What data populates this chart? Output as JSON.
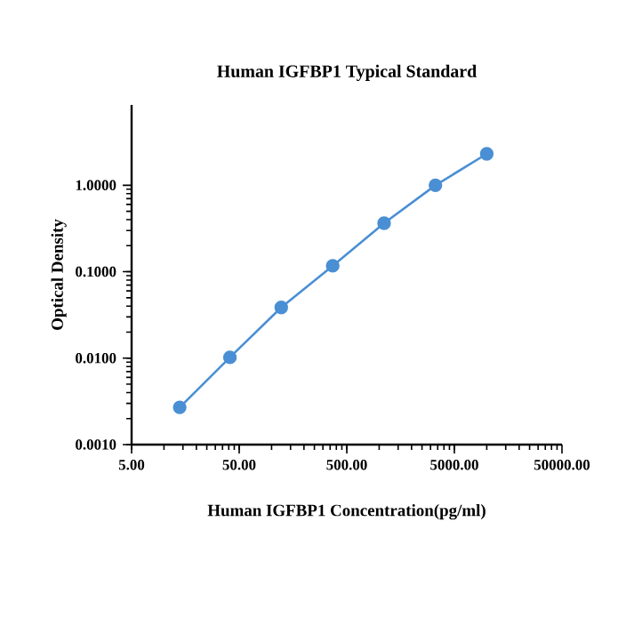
{
  "chart_data": {
    "type": "line",
    "title": "Human IGFBP1 Typical Standard",
    "xlabel": "Human IGFBP1 Concentration(pg/ml)",
    "ylabel": "Optical Density",
    "x": [
      14,
      41,
      123,
      370,
      1111,
      3333,
      10000
    ],
    "series": [
      {
        "color": "#4a8fd4",
        "values": [
          0.0027,
          0.0102,
          0.0386,
          0.117,
          0.364,
          1.0,
          2.31
        ]
      }
    ],
    "log": "xy",
    "xlim": [
      5,
      50000
    ],
    "ylim": [
      0.001,
      8.5
    ],
    "xticks": [
      {
        "value": 5,
        "label": "5.00"
      },
      {
        "value": 50,
        "label": "50.00"
      },
      {
        "value": 500,
        "label": "500.00"
      },
      {
        "value": 5000,
        "label": "5000.00"
      },
      {
        "value": 50000,
        "label": "50000.00"
      }
    ],
    "yticks": [
      {
        "value": 0.001,
        "label": "0.0010"
      },
      {
        "value": 0.01,
        "label": "0.0100"
      },
      {
        "value": 0.1,
        "label": "0.1000"
      },
      {
        "value": 1,
        "label": "1.0000"
      }
    ],
    "marker": "circle",
    "line_style": "solid",
    "grid": false
  }
}
